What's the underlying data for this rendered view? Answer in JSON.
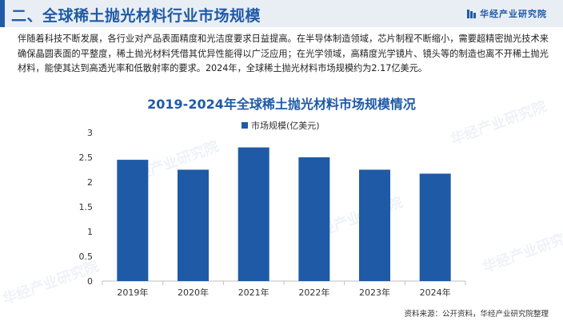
{
  "header": {
    "title": "二、全球稀土抛光材料行业市场规模",
    "brand": "华经产业研究院"
  },
  "intro_text": "伴随着科技不断发展，各行业对产品表面精度和光洁度要求日益提高。在半导体制造领域，芯片制程不断缩小，需要超精密抛光技术来确保晶圆表面的平整度，稀土抛光材料凭借其优异性能得以广泛应用；在光学领域，高精度光学镜片、镜头等的制造也离不开稀土抛光材料，能使其达到高透光率和低散射率的要求。2024年，全球稀土抛光材料市场规模约为2.17亿美元。",
  "watermark": "华经产业研究院",
  "source": "资料来源：公开资料，华经产业研究院整理",
  "colors": {
    "accent": "#1f5aa6",
    "bar": "#1f5aa6",
    "header_bg": "#e9eef5"
  },
  "chart_data": {
    "type": "bar",
    "title": "2019-2024年全球稀土抛光材料市场规模情况",
    "categories": [
      "2019年",
      "2020年",
      "2021年",
      "2022年",
      "2023年",
      "2024年"
    ],
    "series": [
      {
        "name": "市场规模(亿美元)",
        "values": [
          2.45,
          2.25,
          2.7,
          2.5,
          2.25,
          2.17
        ]
      }
    ],
    "ylim": [
      0,
      3
    ],
    "yticks": [
      "0",
      "0.5",
      "1",
      "1.5",
      "2",
      "2.5",
      "3"
    ],
    "legend": "top-center",
    "grid": false
  }
}
